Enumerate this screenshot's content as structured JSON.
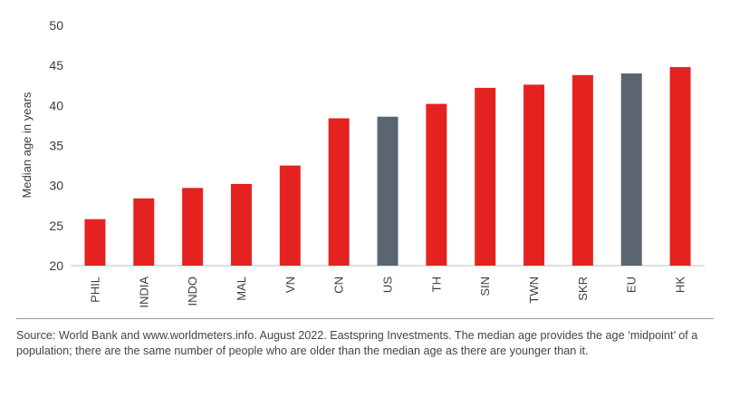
{
  "chart_data": {
    "type": "bar",
    "title": "",
    "xlabel": "",
    "ylabel": "Median age in years",
    "ylim": [
      20,
      50
    ],
    "yticks": [
      20,
      25,
      30,
      35,
      40,
      45,
      50
    ],
    "grid": false,
    "legend": "none",
    "categories": [
      "PHIL",
      "INDIA",
      "INDO",
      "MAL",
      "VN",
      "CN",
      "US",
      "TH",
      "SIN",
      "TWN",
      "SKR",
      "EU",
      "HK"
    ],
    "values": [
      25.8,
      28.4,
      29.7,
      30.2,
      32.5,
      38.4,
      38.6,
      40.2,
      42.2,
      42.6,
      43.8,
      44.0,
      44.8
    ],
    "highlight_categories": [
      "US",
      "EU"
    ],
    "colors": {
      "default": "#e42320",
      "highlight": "#5a6570"
    }
  },
  "source_note": "Source: World Bank and www.worldmeters.info. August 2022. Eastspring Investments. The median age provides the age ‘midpoint’ of a population; there are the same number of people who are older than the median age as there are younger than it."
}
